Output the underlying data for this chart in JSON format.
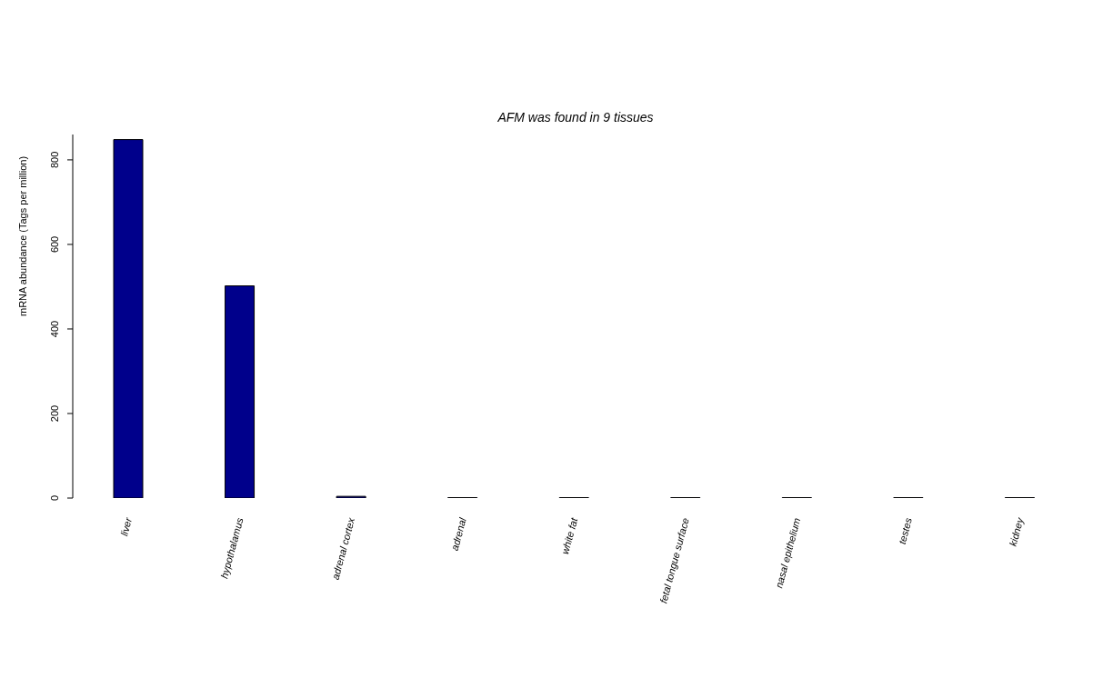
{
  "chart_data": {
    "type": "bar",
    "title": "AFM  was found in  9  tissues",
    "ylabel": "mRNA abundance (Tags per million)",
    "categories": [
      "liver",
      "hypothalamus",
      "adrenal cortex",
      "adrenal",
      "white fat",
      "fetal tongue surface",
      "nasal epithelium",
      "testes",
      "kidney"
    ],
    "values": [
      848,
      502,
      4,
      1,
      1,
      1,
      1,
      1,
      1
    ],
    "color": "#00008b",
    "ylim": [
      0,
      860
    ],
    "yticks": [
      0,
      200,
      400,
      600,
      800
    ],
    "grid": false
  }
}
